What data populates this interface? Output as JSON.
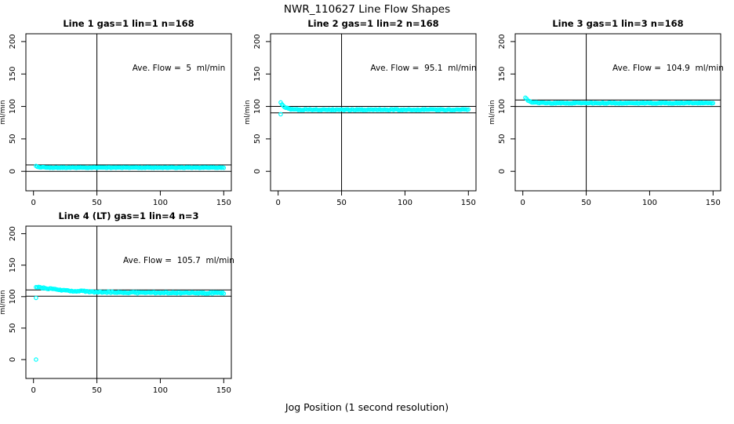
{
  "figure": {
    "title": "NWR_110627  Line Flow Shapes",
    "xlabel": "Jog Position (1 second resolution)",
    "point_color": "#00ffff",
    "axis_color": "#000000"
  },
  "chart_data": [
    {
      "type": "scatter",
      "title": "Line 1 gas=1 lin=1 n=168",
      "ylabel": "ml/min",
      "ave_flow_label": "Ave. Flow =  5  ml/min",
      "ave_flow_ml_min": 5,
      "n_jogs": 168,
      "xticks": [
        0,
        50,
        100,
        150
      ],
      "yticks": [
        0,
        50,
        100,
        150,
        200
      ],
      "xlim": [
        0,
        150
      ],
      "ylim": [
        0,
        200
      ],
      "vline_x": 50,
      "ref_lines_y": [
        0,
        10
      ],
      "series": {
        "x_start": 2,
        "x_end": 150,
        "x_step": 1,
        "y_initial": 8,
        "y_steady": 5.8,
        "decay_tau": 3,
        "noise": 0.5,
        "seed": 11
      },
      "outliers": []
    },
    {
      "type": "scatter",
      "title": "Line 2 gas=1 lin=2 n=168",
      "ylabel": "ml/min",
      "ave_flow_label": "Ave. Flow =  95.1  ml/min",
      "ave_flow_ml_min": 95.1,
      "n_jogs": 168,
      "xticks": [
        0,
        50,
        100,
        150
      ],
      "yticks": [
        0,
        50,
        100,
        150,
        200
      ],
      "xlim": [
        0,
        150
      ],
      "ylim": [
        0,
        200
      ],
      "vline_x": 50,
      "ref_lines_y": [
        90.1,
        100.1
      ],
      "series": {
        "x_start": 2,
        "x_end": 150,
        "x_step": 1,
        "y_initial": 106,
        "y_steady": 95,
        "decay_tau": 3.2,
        "noise": 0.7,
        "seed": 22
      },
      "outliers": [
        [
          2,
          88
        ]
      ]
    },
    {
      "type": "scatter",
      "title": "Line 3 gas=1 lin=3 n=168",
      "ylabel": "ml/min",
      "ave_flow_label": "Ave. Flow =  104.9  ml/min",
      "ave_flow_ml_min": 104.9,
      "n_jogs": 168,
      "xticks": [
        0,
        50,
        100,
        150
      ],
      "yticks": [
        0,
        50,
        100,
        150,
        200
      ],
      "xlim": [
        0,
        150
      ],
      "ylim": [
        0,
        200
      ],
      "vline_x": 50,
      "ref_lines_y": [
        99.9,
        109.9
      ],
      "series": {
        "x_start": 2,
        "x_end": 150,
        "x_step": 1,
        "y_initial": 113.5,
        "y_steady": 105.3,
        "decay_tau": 3,
        "noise": 0.7,
        "seed": 33
      },
      "outliers": []
    },
    {
      "type": "scatter",
      "title": "Line 4 (LT) gas=1 lin=4 n=3",
      "ylabel": "ml/min",
      "ave_flow_label": "Ave. Flow =  105.7  ml/min",
      "ave_flow_ml_min": 105.7,
      "n_jogs": 3,
      "xticks": [
        0,
        50,
        100,
        150
      ],
      "yticks": [
        0,
        50,
        100,
        150,
        200
      ],
      "xlim": [
        0,
        150
      ],
      "ylim": [
        0,
        200
      ],
      "vline_x": 50,
      "ref_lines_y": [
        100.7,
        110.7
      ],
      "series": {
        "x_start": 2,
        "x_end": 150,
        "x_step": 1,
        "y_initial": 115.5,
        "y_steady": 105.8,
        "decay_tau": 28,
        "noise": 1.1,
        "seed": 44
      },
      "outliers": [
        [
          2,
          98
        ],
        [
          2,
          0
        ]
      ]
    }
  ]
}
